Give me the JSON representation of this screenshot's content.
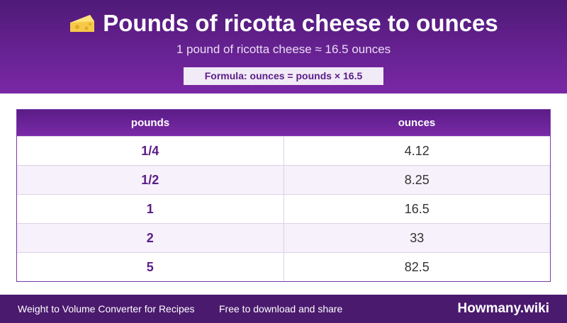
{
  "header": {
    "title": "Pounds of ricotta cheese to ounces",
    "subtitle": "1 pound of ricotta cheese ≈ 16.5 ounces",
    "formula": "Formula: ounces = pounds × 16.5"
  },
  "table": {
    "columns": [
      "pounds",
      "ounces"
    ],
    "rows": [
      [
        "1/4",
        "4.12"
      ],
      [
        "1/2",
        "8.25"
      ],
      [
        "1",
        "16.5"
      ],
      [
        "2",
        "33"
      ],
      [
        "5",
        "82.5"
      ]
    ]
  },
  "footer": {
    "left": "Weight to Volume Converter for Recipes",
    "middle": "Free to download and share",
    "brand": "Howmany.wiki"
  }
}
